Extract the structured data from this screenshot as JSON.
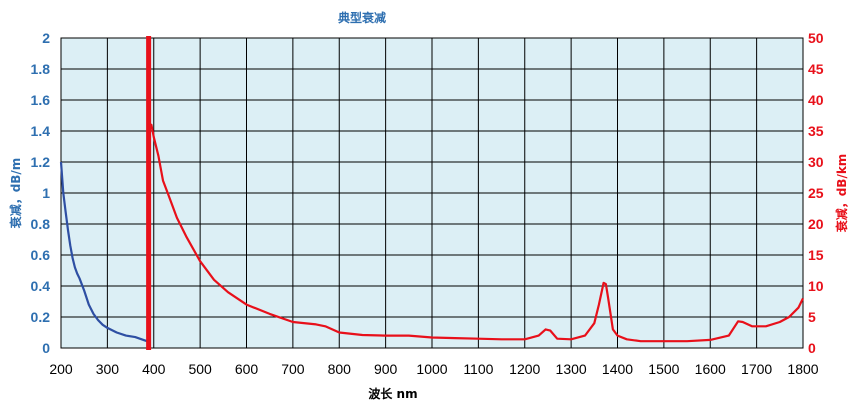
{
  "chart_data": {
    "type": "line",
    "title": "典型衰减",
    "xlabel": "波长 nm",
    "ylabel_left": "衰减，dB/m",
    "ylabel_right": "衰减，dB/km",
    "xlim": [
      200,
      1800
    ],
    "ylim_left": [
      0,
      2
    ],
    "ylim_right": [
      0,
      50
    ],
    "x_ticks": [
      "200",
      "300",
      "400",
      "500",
      "600",
      "700",
      "800",
      "900",
      "1000",
      "1100",
      "1200",
      "1300",
      "1400",
      "1500",
      "1600",
      "1700",
      "1800"
    ],
    "y_left_ticks": [
      "0",
      "0.2",
      "0.4",
      "0.6",
      "0.8",
      "1",
      "1.2",
      "1.4",
      "1.6",
      "1.8",
      "2"
    ],
    "y_right_ticks": [
      "0",
      "5",
      "10",
      "15",
      "20",
      "25",
      "30",
      "35",
      "40",
      "45",
      "50"
    ],
    "grid": true,
    "colors": {
      "plot_bg": "#dcefF5",
      "grid": "#000000",
      "series_left": "#2e4fa3",
      "series_right": "#e8101a",
      "title": "#2e6fb0",
      "left_axis": "#2e6fb0",
      "right_axis": "#e8101a",
      "divider": "#e8101a"
    },
    "divider_x": 390,
    "series": [
      {
        "axis": "left",
        "x": [
          200,
          205,
          210,
          215,
          220,
          225,
          230,
          235,
          240,
          250,
          260,
          270,
          280,
          290,
          300,
          320,
          340,
          360,
          380,
          390
        ],
        "y": [
          1.2,
          1.0,
          0.88,
          0.76,
          0.66,
          0.58,
          0.52,
          0.48,
          0.45,
          0.37,
          0.28,
          0.22,
          0.18,
          0.15,
          0.13,
          0.1,
          0.08,
          0.07,
          0.05,
          0.04
        ]
      },
      {
        "axis": "right",
        "x": [
          390,
          395,
          400,
          410,
          420,
          430,
          450,
          470,
          500,
          530,
          560,
          600,
          650,
          700,
          750,
          770,
          800,
          850,
          900,
          950,
          1000,
          1050,
          1100,
          1150,
          1200,
          1230,
          1245,
          1255,
          1270,
          1300,
          1330,
          1350,
          1360,
          1370,
          1375,
          1380,
          1390,
          1400,
          1420,
          1450,
          1500,
          1550,
          1600,
          1640,
          1660,
          1670,
          1690,
          1720,
          1750,
          1770,
          1790,
          1800
        ],
        "y": [
          35,
          36,
          34,
          31,
          27,
          25,
          21,
          18,
          14,
          11,
          9,
          7,
          5.5,
          4.2,
          3.8,
          3.5,
          2.5,
          2.1,
          2.0,
          2.0,
          1.7,
          1.6,
          1.5,
          1.4,
          1.4,
          2.0,
          3.0,
          2.8,
          1.5,
          1.4,
          2.0,
          4.0,
          7.0,
          10.5,
          10.3,
          8.0,
          3.0,
          2.0,
          1.4,
          1.1,
          1.1,
          1.1,
          1.3,
          2.0,
          4.3,
          4.2,
          3.5,
          3.5,
          4.2,
          5.0,
          6.5,
          8.0
        ]
      }
    ]
  }
}
